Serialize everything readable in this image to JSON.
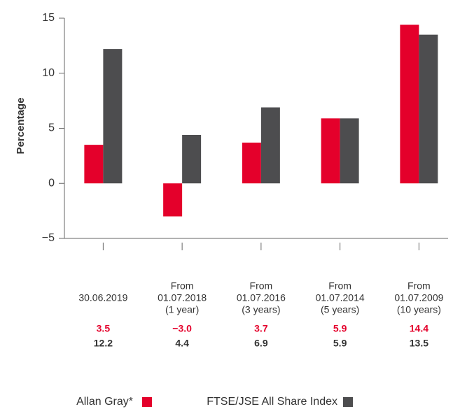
{
  "chart_data": {
    "type": "bar",
    "y_label": "Percentage",
    "categories": [
      [
        "30.06.2019"
      ],
      [
        "From",
        "01.07.2018",
        "(1 year)"
      ],
      [
        "From",
        "01.07.2016",
        "(3 years)"
      ],
      [
        "From",
        "01.07.2014",
        "(5 years)"
      ],
      [
        "From",
        "01.07.2009",
        "(10 years)"
      ]
    ],
    "series": [
      {
        "name": "Allan Gray*",
        "color": "#e4002b",
        "values": [
          3.5,
          -3.0,
          3.7,
          5.9,
          14.4
        ],
        "value_labels": [
          "3.5",
          "−3.0",
          "3.7",
          "5.9",
          "14.4"
        ]
      },
      {
        "name": "FTSE/JSE All Share Index",
        "color": "#4d4d4f",
        "values": [
          12.2,
          4.4,
          6.9,
          5.9,
          13.5
        ],
        "value_labels": [
          "12.2",
          "4.4",
          "6.9",
          "5.9",
          "13.5"
        ]
      }
    ],
    "ylim": [
      -5,
      15
    ],
    "yticks": [
      {
        "value": -5,
        "label": "−5"
      },
      0,
      5,
      10,
      15
    ]
  }
}
